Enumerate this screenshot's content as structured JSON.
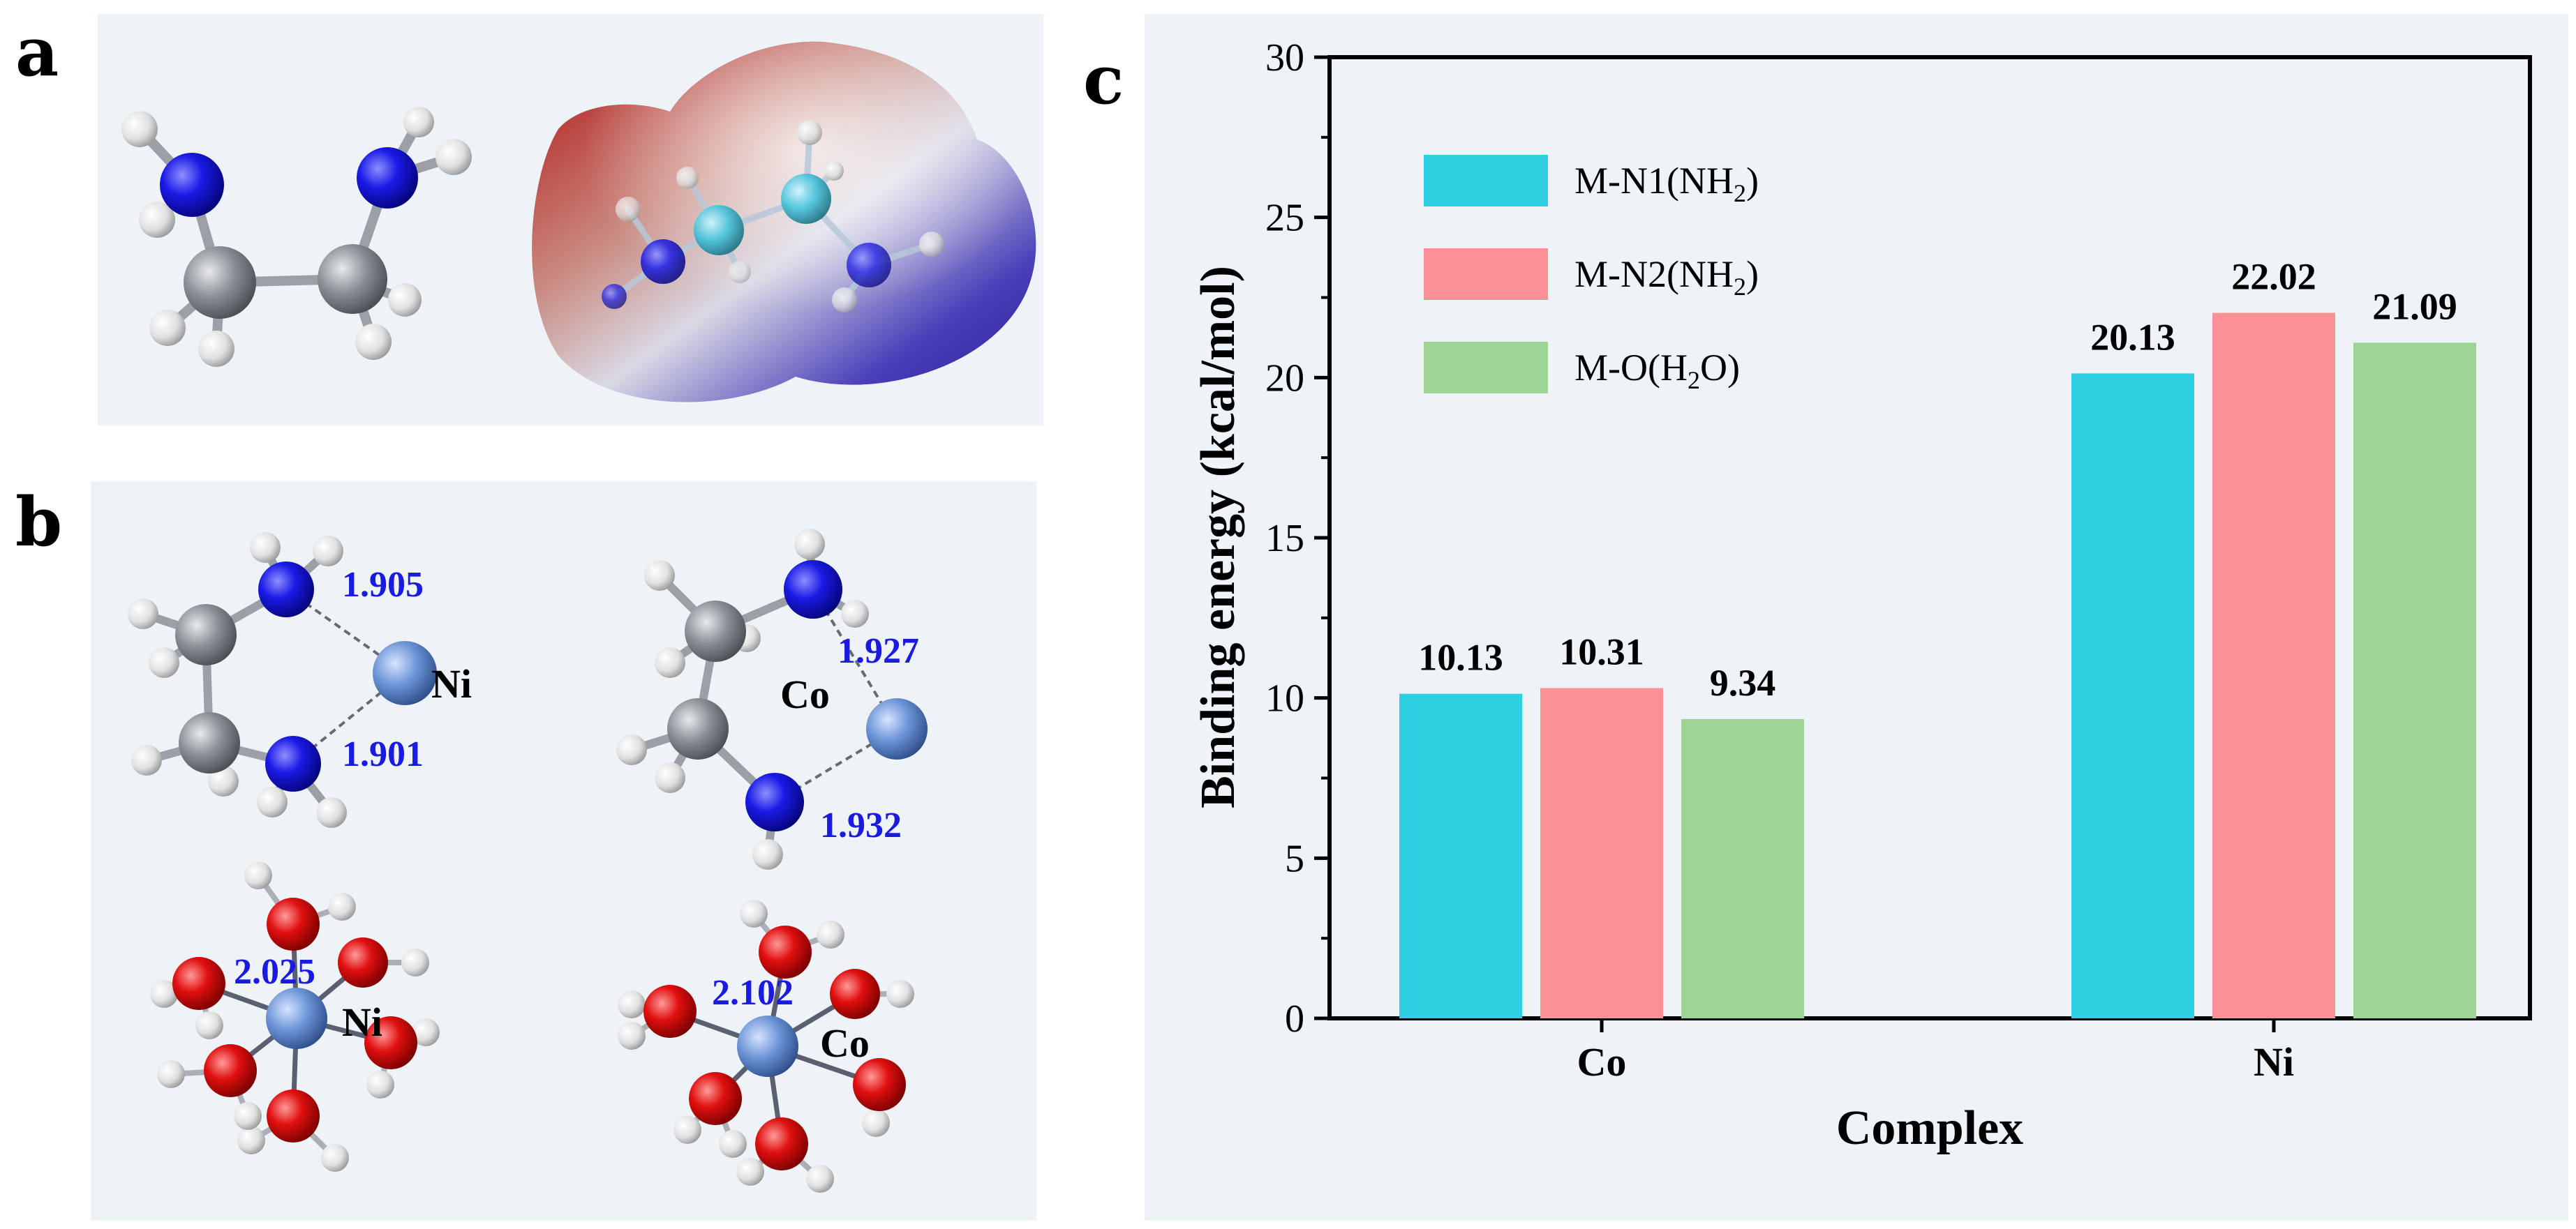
{
  "panels": {
    "a": "a",
    "b": "b",
    "c": "c"
  },
  "panel_b": {
    "ni_en": {
      "metal": "Ni",
      "bond1": "1.905",
      "bond2": "1.901"
    },
    "co_en": {
      "metal": "Co",
      "bond1": "1.927",
      "bond2": "1.932"
    },
    "ni_water": {
      "metal": "Ni",
      "bond": "2.025"
    },
    "co_water": {
      "metal": "Co",
      "bond": "2.102"
    }
  },
  "colors": {
    "n1": "#2ecfe0",
    "n2": "#fb9096",
    "o": "#9dd597",
    "nitrogen_atom": "#1a1ae6",
    "oxygen_atom": "#e01010",
    "carbon_atom": "#8a9096",
    "hydrogen_atom": "#e8e8e8",
    "metal_atom": "#6b93d6"
  },
  "chart_data": {
    "type": "bar",
    "title": "",
    "xlabel": "Complex",
    "ylabel": "Binding energy (kcal/mol)",
    "ylim": [
      0,
      30
    ],
    "yticks": [
      0,
      5,
      10,
      15,
      20,
      25,
      30
    ],
    "categories": [
      "Co",
      "Ni"
    ],
    "series": [
      {
        "name": "M-N1(NH2)",
        "legend_main": "M-N1(NH",
        "legend_sub": "2",
        "legend_tail": ")",
        "values": [
          10.13,
          20.13
        ],
        "labels": [
          "10.13",
          "20.13"
        ],
        "color_key": "n1"
      },
      {
        "name": "M-N2(NH2)",
        "legend_main": "M-N2(NH",
        "legend_sub": "2",
        "legend_tail": ")",
        "values": [
          10.31,
          22.02
        ],
        "labels": [
          "10.31",
          "22.02"
        ],
        "color_key": "n2"
      },
      {
        "name": "M-O(H2O)",
        "legend_main": "M-O(H",
        "legend_sub": "2",
        "legend_tail": "O)",
        "values": [
          9.34,
          21.09
        ],
        "labels": [
          "9.34",
          "21.09"
        ],
        "color_key": "o"
      }
    ],
    "legend_position": "top-left"
  }
}
